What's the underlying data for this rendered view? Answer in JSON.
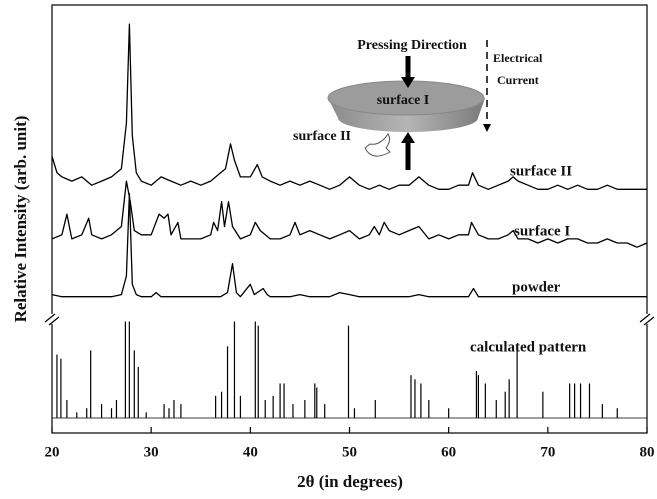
{
  "chart_data": {
    "type": "line",
    "x_label": "2θ (in degrees)",
    "y_label": "Relative Intensity (arb. unit)",
    "xlim": [
      20,
      80
    ],
    "xticks": [
      20,
      30,
      40,
      50,
      60,
      70,
      80
    ],
    "ylim": [
      0,
      100
    ],
    "annotations": {
      "pressing": "Pressing Direction",
      "surface_top": "surface I",
      "surface_side": "surface II",
      "current": [
        "Electrical",
        "Current"
      ]
    },
    "series": [
      {
        "name": "surface II",
        "color": "#000000",
        "kind": "line",
        "x": [
          20,
          20.5,
          21,
          22,
          23,
          24,
          25,
          26,
          27,
          27.5,
          27.8,
          28.1,
          28.5,
          29,
          30,
          31,
          32,
          33,
          34,
          35,
          36,
          37,
          37.5,
          38,
          38.4,
          39,
          40,
          40.7,
          41.2,
          42,
          43,
          44,
          45,
          46,
          47,
          48,
          49,
          50,
          51,
          52,
          53,
          54,
          55,
          56,
          57,
          58,
          59,
          60,
          61,
          62,
          62.4,
          63,
          64,
          65,
          66,
          66.5,
          67,
          68,
          69,
          70,
          71,
          72,
          73,
          74,
          75,
          76,
          77,
          78,
          79,
          80
        ],
        "values": [
          67,
          63,
          62,
          61,
          62,
          60,
          61,
          62,
          64,
          75,
          99,
          72,
          63,
          61,
          60,
          62,
          61,
          60,
          61,
          60,
          61,
          63,
          64,
          70,
          66,
          62,
          62,
          65,
          62,
          61,
          60,
          61,
          60,
          61,
          60,
          59,
          60,
          62,
          60,
          59,
          60,
          59,
          60,
          60,
          62,
          60,
          59,
          59,
          60,
          60,
          63,
          60,
          59,
          60,
          61,
          62,
          61,
          60,
          59,
          59,
          60,
          59,
          60,
          59,
          59,
          60,
          59,
          59,
          59,
          59
        ]
      },
      {
        "name": "surface I",
        "color": "#000000",
        "kind": "line",
        "x": [
          20,
          21,
          21.5,
          22,
          23,
          23.7,
          24,
          25,
          26,
          27,
          27.5,
          27.9,
          28.3,
          29,
          30,
          30.8,
          31.3,
          31.7,
          32,
          32.7,
          33,
          34,
          35,
          36,
          36.3,
          36.7,
          37.1,
          37.4,
          37.8,
          38.2,
          39,
          40,
          40.5,
          41,
          42,
          43,
          44,
          44.5,
          45,
          46,
          47,
          48,
          49,
          50,
          51,
          52,
          52.5,
          53,
          53.5,
          54,
          55,
          56,
          57,
          58,
          59,
          60,
          61,
          62,
          62.3,
          63,
          64,
          65,
          66,
          66.5,
          67,
          68,
          69,
          70,
          71,
          72,
          73,
          74,
          75,
          76,
          77,
          78,
          79,
          80
        ],
        "values": [
          47,
          48,
          53,
          47,
          48,
          52,
          48,
          47,
          48,
          50,
          61,
          56,
          49,
          48,
          48,
          53,
          52,
          53,
          48,
          51,
          47,
          47,
          47,
          48,
          51,
          49,
          56,
          50,
          56,
          50,
          47,
          48,
          51,
          49,
          47,
          47,
          48,
          51,
          48,
          49,
          48,
          47,
          48,
          49,
          47,
          48,
          50,
          48,
          51,
          49,
          48,
          49,
          50,
          47,
          48,
          47,
          48,
          48,
          51,
          48,
          47,
          47,
          48,
          49,
          47,
          47,
          46,
          47,
          46,
          47,
          47,
          46,
          46,
          47,
          46,
          46,
          45,
          46
        ]
      },
      {
        "name": "powder",
        "color": "#000000",
        "kind": "line",
        "x": [
          20,
          21,
          22,
          23,
          24,
          25,
          26,
          27,
          27.5,
          27.8,
          28.1,
          28.5,
          29,
          30,
          30.5,
          31,
          32,
          33,
          34,
          35,
          36,
          37,
          37.7,
          38.2,
          38.6,
          39,
          40,
          40.4,
          41,
          41.3,
          41.7,
          42,
          43,
          44,
          45,
          46,
          47,
          48,
          49,
          50,
          51,
          52,
          53,
          54,
          55,
          56,
          57,
          58,
          59,
          60,
          61,
          62,
          62.5,
          63,
          64,
          65,
          66,
          67,
          68,
          69,
          70,
          71,
          72,
          73,
          74,
          75,
          76,
          77,
          78,
          79,
          80
        ],
        "values": [
          33.5,
          33,
          33,
          33,
          33,
          33,
          33,
          33.5,
          38,
          58,
          36,
          33.5,
          33,
          33,
          34,
          33,
          33,
          33,
          33,
          33,
          33,
          33,
          34,
          41,
          34,
          33,
          36,
          33.5,
          34.5,
          35,
          33.5,
          33,
          33,
          33,
          33.5,
          33,
          33,
          33,
          34,
          33.5,
          33,
          33,
          33,
          33,
          33,
          33,
          33.5,
          33,
          33,
          33,
          33,
          33,
          35,
          33,
          33,
          33,
          33,
          33,
          33,
          33,
          33,
          33,
          33,
          33,
          33,
          33,
          33,
          33,
          33,
          33,
          33
        ]
      },
      {
        "name": "calculated pattern",
        "color": "#000000",
        "kind": "stick",
        "x": [
          20.5,
          20.9,
          21.5,
          22.5,
          23.5,
          23.9,
          25,
          26,
          26.5,
          27.4,
          27.8,
          28.3,
          28.7,
          29.5,
          31.3,
          31.8,
          32.3,
          33,
          36.5,
          37.1,
          37.7,
          38.4,
          39,
          40.5,
          40.8,
          41.5,
          42.3,
          43,
          43.4,
          44.3,
          45.5,
          46.5,
          46.7,
          47.5,
          49.9,
          50.5,
          52.6,
          56.2,
          56.6,
          57.2,
          58,
          60,
          62.8,
          63,
          63.7,
          64.8,
          65.7,
          66.1,
          66.9,
          69.5,
          72.2,
          72.7,
          73.3,
          74.2,
          75.5,
          77
        ],
        "values": [
          19,
          18,
          8,
          5,
          6,
          20,
          7,
          6,
          8,
          27,
          27,
          20,
          16,
          5,
          7,
          6,
          8,
          7,
          9,
          10,
          21,
          27,
          9,
          27,
          26,
          8,
          9,
          12,
          12,
          7,
          8,
          12,
          11,
          7,
          26,
          6,
          8,
          14,
          13,
          12,
          8,
          6,
          15,
          14,
          12,
          8,
          10,
          13,
          20,
          10,
          12,
          12,
          12,
          12,
          7,
          6
        ]
      }
    ]
  }
}
